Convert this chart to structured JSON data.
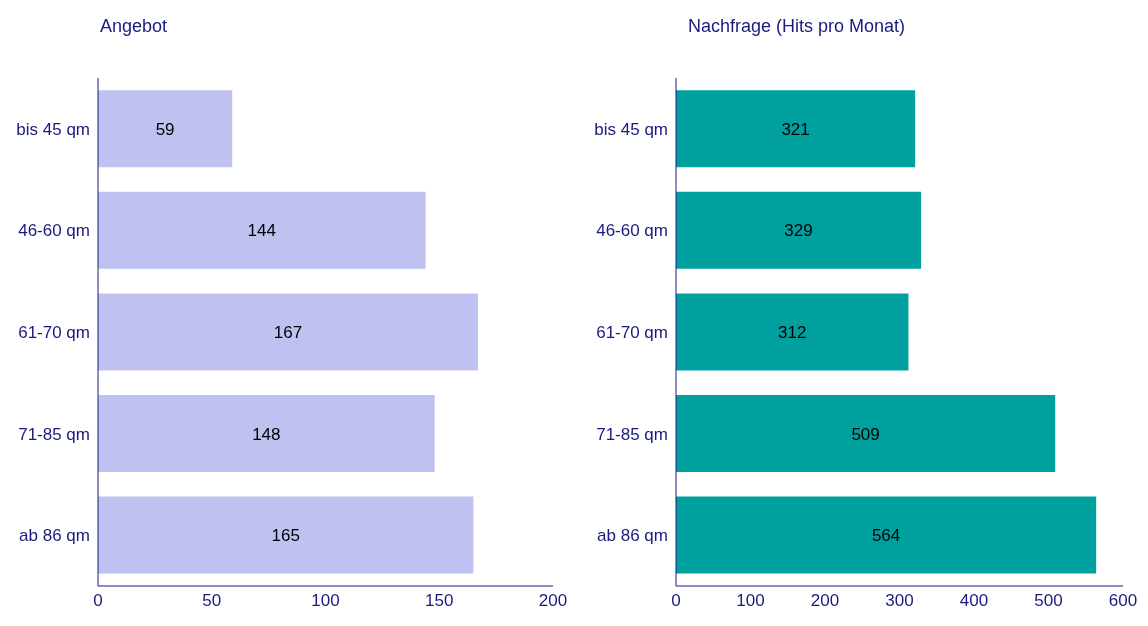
{
  "chart_data": [
    {
      "type": "bar",
      "orientation": "horizontal",
      "title": "Angebot",
      "categories": [
        "bis 45 qm",
        "46-60 qm",
        "61-70 qm",
        "71-85 qm",
        "ab 86 qm"
      ],
      "values": [
        59,
        144,
        167,
        148,
        165
      ],
      "color": "#bfc2f0",
      "xlim": [
        0,
        200
      ],
      "xticks": [
        0,
        50,
        100,
        150,
        200
      ],
      "data_labels": true,
      "grid": false,
      "legend": false
    },
    {
      "type": "bar",
      "orientation": "horizontal",
      "title": "Nachfrage (Hits pro Monat)",
      "categories": [
        "bis 45 qm",
        "46-60 qm",
        "61-70 qm",
        "71-85 qm",
        "ab 86 qm"
      ],
      "values": [
        321,
        329,
        312,
        509,
        564
      ],
      "color": "#00a09e",
      "xlim": [
        0,
        600
      ],
      "xticks": [
        0,
        100,
        200,
        300,
        400,
        500,
        600
      ],
      "data_labels": true,
      "grid": false,
      "legend": false
    }
  ]
}
